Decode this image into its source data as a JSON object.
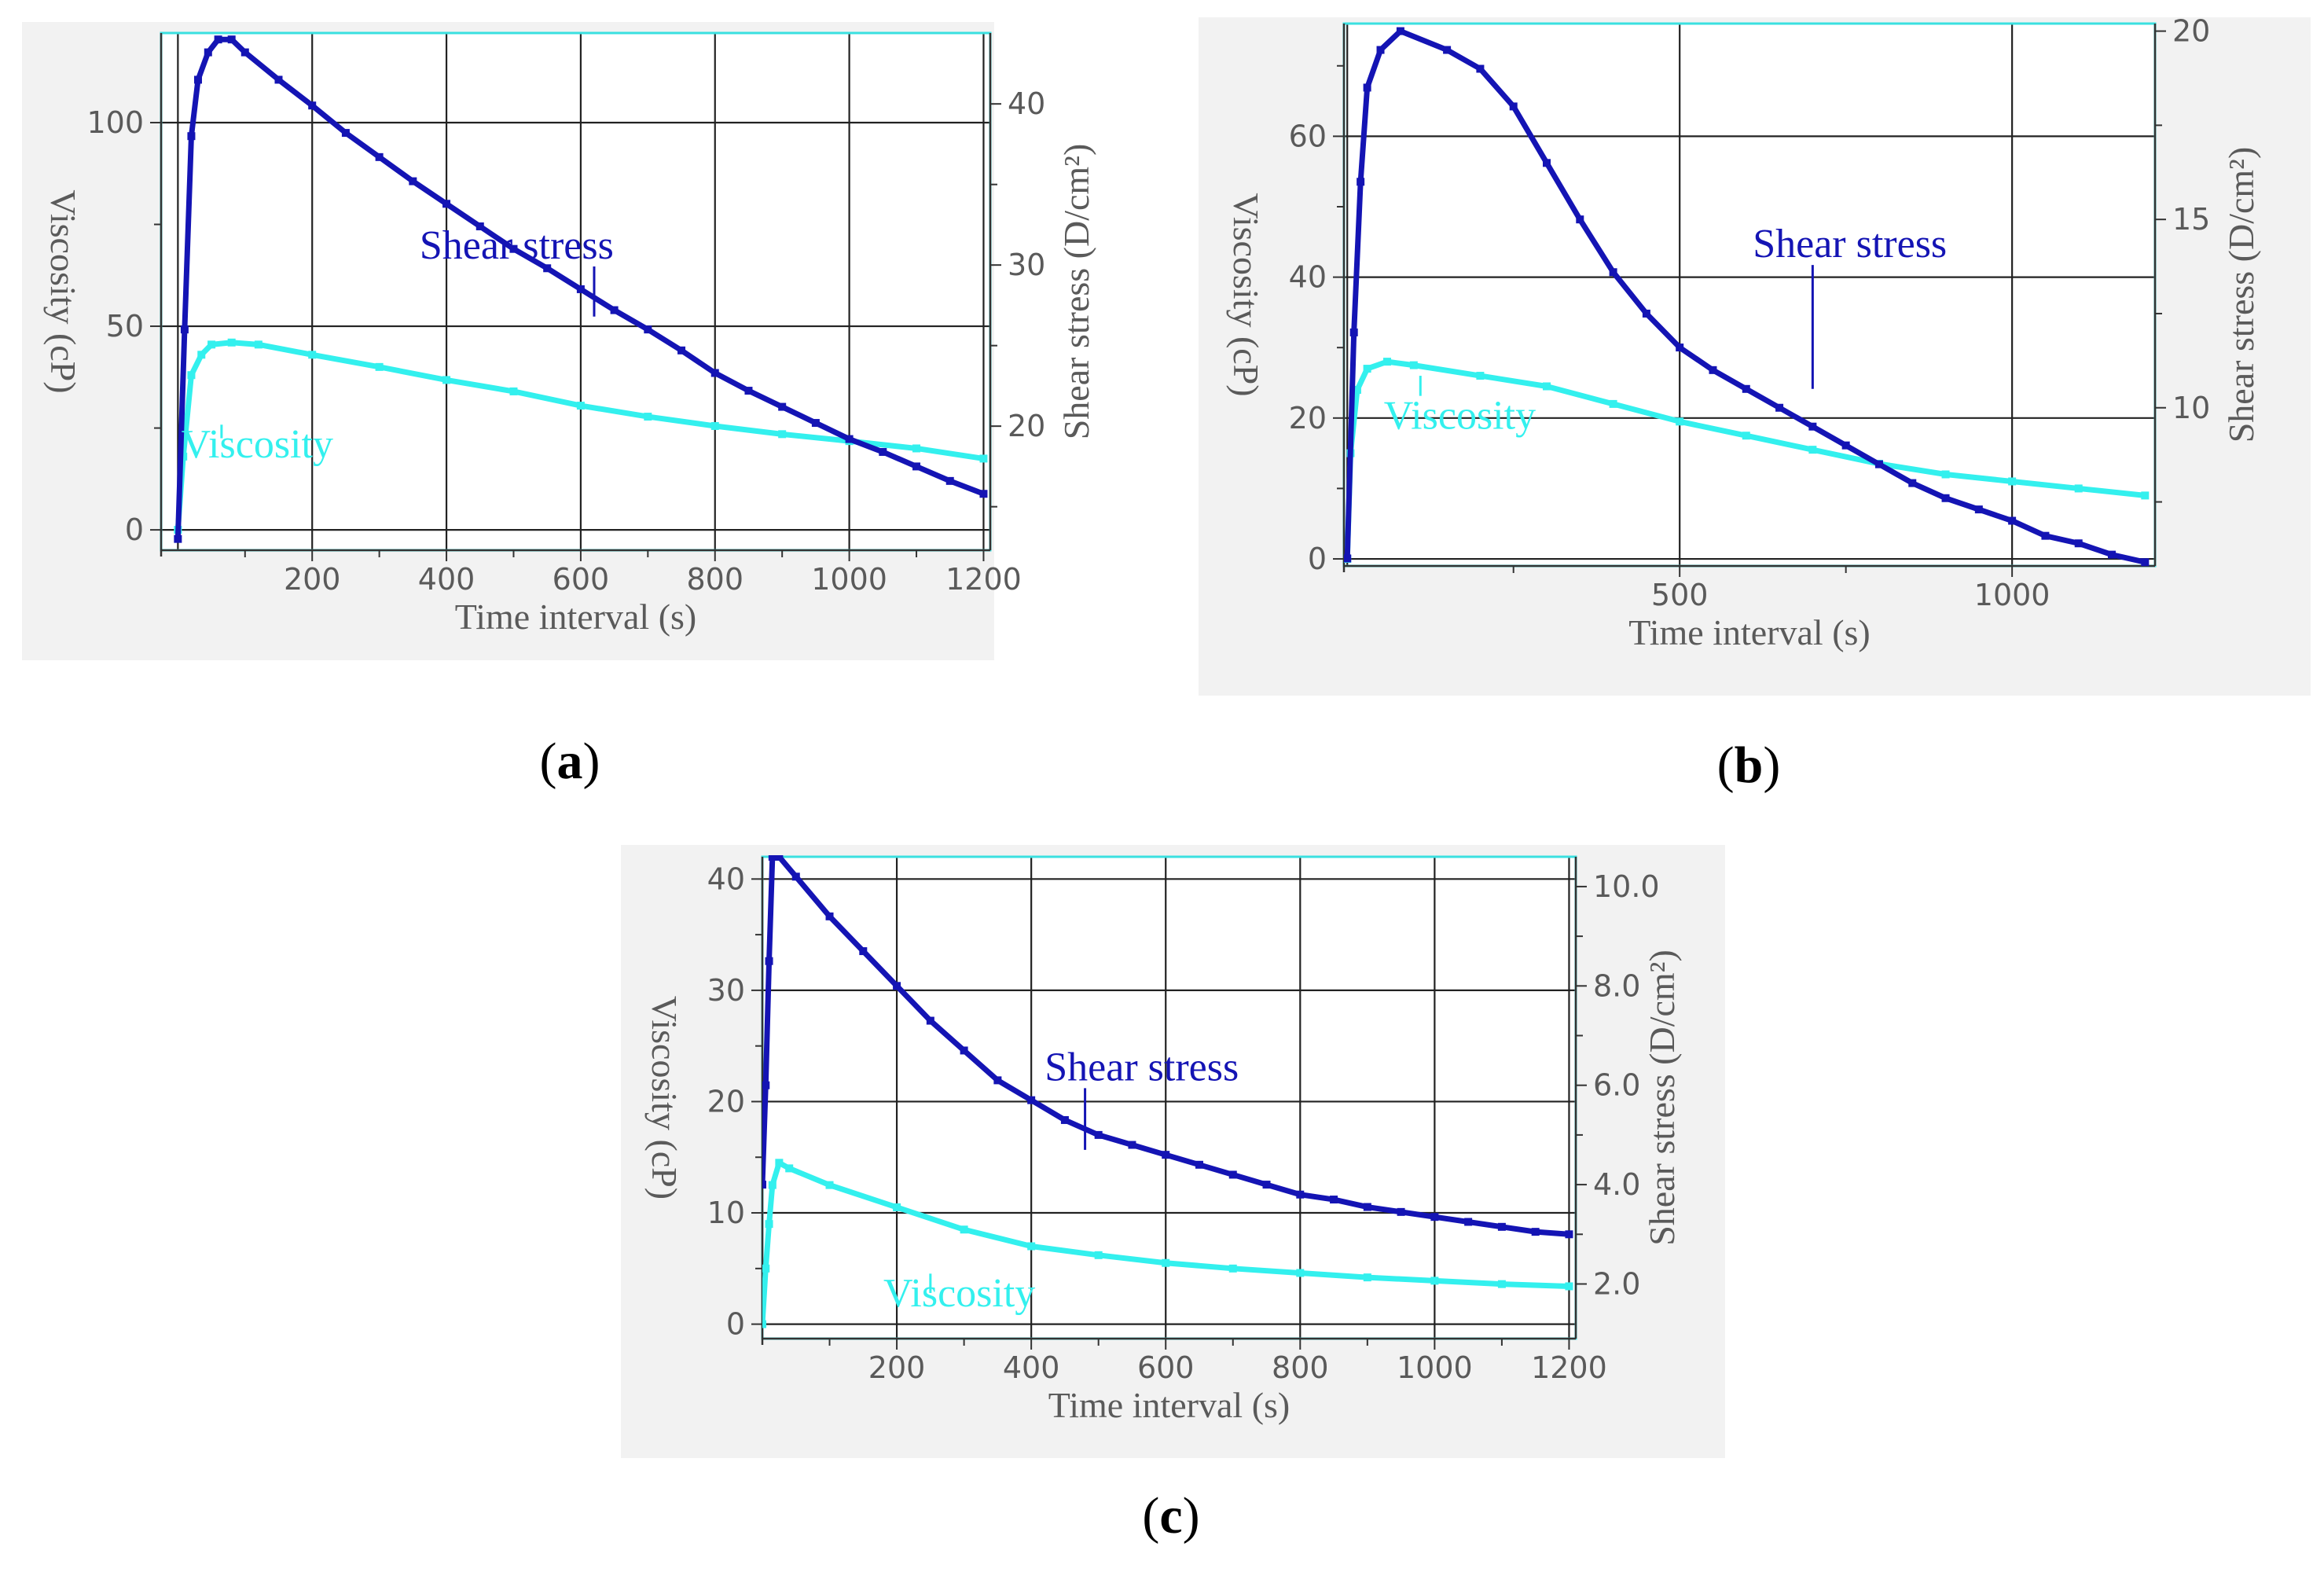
{
  "colors": {
    "shear": "#1414b4",
    "viscosity": "#33f0ee",
    "panel_bg": "#f2f2f2",
    "grid": "#222222",
    "axis_text": "#5a5a5a",
    "frame": "#3ae0e0"
  },
  "chart_data": [
    {
      "panel": "a",
      "caption": "a",
      "type": "line",
      "xlabel": "Time interval (s)",
      "ylabel": "Viscosity (cP)",
      "y2label": "Shear stress (D/cm²)",
      "x_range": [
        -25,
        1210
      ],
      "y_range": [
        -5,
        122
      ],
      "y2_range": [
        12.3,
        44.4
      ],
      "x_ticks": [
        200,
        400,
        600,
        800,
        1000,
        1200
      ],
      "x_ticks_minor": [
        100,
        300,
        500,
        700,
        900,
        1100
      ],
      "x_grid": [
        0,
        200,
        400,
        600,
        800,
        1000,
        1200
      ],
      "y_ticks": [
        0,
        50,
        100
      ],
      "y_ticks_minor": [
        25,
        75
      ],
      "y_grid": [
        0,
        50,
        100
      ],
      "y2_ticks": [
        20,
        30,
        40
      ],
      "y2_ticks_minor": [
        15,
        25,
        35
      ],
      "annotations": [
        {
          "text": "Shear stress",
          "series": "shear",
          "text_x": 360,
          "text_y": 30.4,
          "point_x": 620,
          "point_y": 26.8
        },
        {
          "text": "Viscosity",
          "series": "viscosity",
          "text_x": 5,
          "text_y": 17.8,
          "point_x": 65,
          "point_y": 22.5
        }
      ],
      "series": [
        {
          "name": "Shear stress",
          "key": "shear",
          "axis": "y2",
          "points": [
            [
              0,
              13.0
            ],
            [
              10,
              26.0
            ],
            [
              20,
              38.0
            ],
            [
              30,
              41.5
            ],
            [
              45,
              43.2
            ],
            [
              60,
              44.0
            ],
            [
              80,
              44.0
            ],
            [
              100,
              43.2
            ],
            [
              150,
              41.5
            ],
            [
              200,
              39.9
            ],
            [
              250,
              38.2
            ],
            [
              300,
              36.7
            ],
            [
              350,
              35.2
            ],
            [
              400,
              33.8
            ],
            [
              450,
              32.4
            ],
            [
              500,
              31.0
            ],
            [
              550,
              29.8
            ],
            [
              600,
              28.5
            ],
            [
              650,
              27.2
            ],
            [
              700,
              26.0
            ],
            [
              750,
              24.7
            ],
            [
              800,
              23.3
            ],
            [
              850,
              22.2
            ],
            [
              900,
              21.2
            ],
            [
              950,
              20.2
            ],
            [
              1000,
              19.2
            ],
            [
              1050,
              18.4
            ],
            [
              1100,
              17.5
            ],
            [
              1150,
              16.6
            ],
            [
              1200,
              15.8
            ]
          ]
        },
        {
          "name": "Viscosity",
          "key": "viscosity",
          "axis": "y",
          "points": [
            [
              0,
              0.0
            ],
            [
              8,
              18.0
            ],
            [
              20,
              38.0
            ],
            [
              35,
              43.0
            ],
            [
              50,
              45.5
            ],
            [
              80,
              46.0
            ],
            [
              120,
              45.5
            ],
            [
              200,
              43.0
            ],
            [
              300,
              40.0
            ],
            [
              400,
              36.8
            ],
            [
              500,
              34.0
            ],
            [
              600,
              30.5
            ],
            [
              700,
              27.8
            ],
            [
              800,
              25.5
            ],
            [
              900,
              23.5
            ],
            [
              1000,
              21.8
            ],
            [
              1100,
              20.0
            ],
            [
              1200,
              17.5
            ]
          ]
        }
      ]
    },
    {
      "panel": "b",
      "caption": "b",
      "type": "line",
      "xlabel": "Time interval (s)",
      "ylabel": "Viscosity (cP)",
      "y2label": "Shear stress (D/cm²)",
      "x_range": [
        -5,
        1215
      ],
      "y_range": [
        -1,
        76
      ],
      "y2_range": [
        5.8,
        20.2
      ],
      "x_ticks": [
        500,
        1000
      ],
      "x_ticks_minor": [
        250,
        750
      ],
      "x_grid": [
        0,
        500,
        1000
      ],
      "y_ticks": [
        0,
        20,
        40,
        60
      ],
      "y_ticks_minor": [
        10,
        30,
        50,
        70
      ],
      "y_grid": [
        0,
        20,
        40,
        60
      ],
      "y2_ticks": [
        10,
        15,
        20
      ],
      "y2_ticks_minor": [
        7.5,
        12.5,
        17.5
      ],
      "annotations": [
        {
          "text": "Shear stress",
          "series": "shear",
          "text_x": 610,
          "text_y": 14.0,
          "point_x": 700,
          "point_y": 10.5
        },
        {
          "text": "Viscosity",
          "series": "viscosity",
          "text_x": 55,
          "text_y": 18.5,
          "point_x": 110,
          "point_y": 26.0
        }
      ],
      "series": [
        {
          "name": "Shear stress",
          "key": "shear",
          "axis": "y2",
          "points": [
            [
              0,
              6.0
            ],
            [
              10,
              12.0
            ],
            [
              20,
              16.0
            ],
            [
              30,
              18.5
            ],
            [
              50,
              19.5
            ],
            [
              80,
              20.0
            ],
            [
              150,
              19.5
            ],
            [
              200,
              19.0
            ],
            [
              250,
              18.0
            ],
            [
              300,
              16.5
            ],
            [
              350,
              15.0
            ],
            [
              400,
              13.6
            ],
            [
              450,
              12.5
            ],
            [
              500,
              11.6
            ],
            [
              550,
              11.0
            ],
            [
              600,
              10.5
            ],
            [
              650,
              10.0
            ],
            [
              700,
              9.5
            ],
            [
              750,
              9.0
            ],
            [
              800,
              8.5
            ],
            [
              850,
              8.0
            ],
            [
              900,
              7.6
            ],
            [
              950,
              7.3
            ],
            [
              1000,
              7.0
            ],
            [
              1050,
              6.6
            ],
            [
              1100,
              6.4
            ],
            [
              1150,
              6.1
            ],
            [
              1200,
              5.9
            ]
          ]
        },
        {
          "name": "Viscosity",
          "key": "viscosity",
          "axis": "y",
          "points": [
            [
              0,
              0.0
            ],
            [
              5,
              15.0
            ],
            [
              15,
              24.0
            ],
            [
              30,
              27.0
            ],
            [
              60,
              28.0
            ],
            [
              100,
              27.5
            ],
            [
              200,
              26.0
            ],
            [
              300,
              24.5
            ],
            [
              400,
              22.0
            ],
            [
              500,
              19.5
            ],
            [
              600,
              17.5
            ],
            [
              700,
              15.5
            ],
            [
              800,
              13.5
            ],
            [
              900,
              12.0
            ],
            [
              1000,
              11.0
            ],
            [
              1100,
              10.0
            ],
            [
              1200,
              9.0
            ]
          ]
        }
      ]
    },
    {
      "panel": "c",
      "caption": "c",
      "type": "line",
      "xlabel": "Time interval (s)",
      "ylabel": "Viscosity (cP)",
      "y2label": "Shear stress (D/cm²)",
      "x_range": [
        0,
        1210
      ],
      "y_range": [
        -1.3,
        42
      ],
      "y2_range": [
        0.9,
        10.6
      ],
      "x_ticks": [
        200,
        400,
        600,
        800,
        1000,
        1200
      ],
      "x_ticks_minor": [
        100,
        300,
        500,
        700,
        900,
        1100
      ],
      "x_grid": [
        0,
        200,
        400,
        600,
        800,
        1000,
        1200
      ],
      "y_ticks": [
        0,
        10,
        20,
        30,
        40
      ],
      "y_ticks_minor": [
        5,
        15,
        25,
        35
      ],
      "y_grid": [
        0,
        10,
        20,
        30,
        40
      ],
      "y2_ticks": [
        "2.0",
        "4.0",
        "6.0",
        "8.0",
        "10.0"
      ],
      "y2_ticks_minor": [
        3,
        5,
        7,
        9
      ],
      "annotations": [
        {
          "text": "Shear stress",
          "series": "shear",
          "text_x": 420,
          "text_y": 6.1,
          "point_x": 480,
          "point_y": 4.7
        },
        {
          "text": "Viscosity",
          "series": "viscosity",
          "text_x": 180,
          "text_y": 1.6,
          "point_x": 250,
          "point_y": 2.8
        }
      ],
      "series": [
        {
          "name": "Shear stress",
          "key": "shear",
          "axis": "y2",
          "points": [
            [
              0,
              4.0
            ],
            [
              5,
              6.0
            ],
            [
              10,
              8.5
            ],
            [
              15,
              10.6
            ],
            [
              25,
              10.6
            ],
            [
              50,
              10.2
            ],
            [
              100,
              9.4
            ],
            [
              150,
              8.7
            ],
            [
              200,
              8.0
            ],
            [
              250,
              7.3
            ],
            [
              300,
              6.7
            ],
            [
              350,
              6.1
            ],
            [
              400,
              5.7
            ],
            [
              450,
              5.3
            ],
            [
              500,
              5.0
            ],
            [
              550,
              4.8
            ],
            [
              600,
              4.6
            ],
            [
              650,
              4.4
            ],
            [
              700,
              4.2
            ],
            [
              750,
              4.0
            ],
            [
              800,
              3.8
            ],
            [
              850,
              3.7
            ],
            [
              900,
              3.55
            ],
            [
              950,
              3.45
            ],
            [
              1000,
              3.35
            ],
            [
              1050,
              3.25
            ],
            [
              1100,
              3.15
            ],
            [
              1150,
              3.05
            ],
            [
              1200,
              3.0
            ]
          ]
        },
        {
          "name": "Viscosity",
          "key": "viscosity",
          "axis": "y",
          "points": [
            [
              0,
              0.0
            ],
            [
              5,
              5.0
            ],
            [
              10,
              9.0
            ],
            [
              15,
              12.5
            ],
            [
              25,
              14.5
            ],
            [
              40,
              14.0
            ],
            [
              100,
              12.5
            ],
            [
              200,
              10.5
            ],
            [
              300,
              8.5
            ],
            [
              400,
              7.0
            ],
            [
              500,
              6.2
            ],
            [
              600,
              5.5
            ],
            [
              700,
              5.0
            ],
            [
              800,
              4.6
            ],
            [
              900,
              4.2
            ],
            [
              1000,
              3.9
            ],
            [
              1100,
              3.6
            ],
            [
              1200,
              3.4
            ]
          ]
        }
      ]
    }
  ]
}
